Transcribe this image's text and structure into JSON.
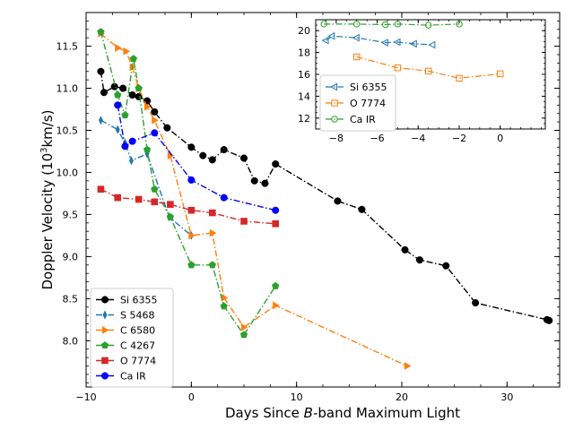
{
  "chart_data": [
    {
      "type": "line",
      "xlabel_parts": [
        "Days Since ",
        "B",
        "-band Maximum Light"
      ],
      "ylabel_parts": [
        "Doppler Velocity (10",
        "3",
        "km/s)"
      ],
      "xlim": [
        -10,
        35
      ],
      "ylim": [
        7.45,
        11.9
      ],
      "xticks": [
        -10,
        0,
        10,
        20,
        30
      ],
      "xtick_labels": [
        "−10",
        "0",
        "10",
        "20",
        "30"
      ],
      "yticks": [
        8.0,
        8.5,
        9.0,
        9.5,
        10.0,
        10.5,
        11.0,
        11.5
      ],
      "ytick_labels": [
        "8.0",
        "8.5",
        "9.0",
        "9.5",
        "10.0",
        "10.5",
        "11.0",
        "11.5"
      ],
      "legend_position": "lower-left",
      "series": [
        {
          "name": "Si 6355",
          "color": "#000000",
          "marker": "circle",
          "x": [
            -8.6,
            -8.3,
            -7.3,
            -6.5,
            -5.6,
            -5.0,
            -4.2,
            -3.5,
            -2.3,
            0.0,
            1.1,
            2.0,
            3.1,
            5.0,
            6.0,
            7.0,
            8.0,
            13.9,
            16.2,
            20.3,
            21.7,
            24.2,
            27.0,
            33.8,
            34.0
          ],
          "y": [
            11.2,
            10.95,
            11.02,
            11.0,
            10.92,
            10.9,
            10.85,
            10.72,
            10.53,
            10.3,
            10.2,
            10.15,
            10.27,
            10.17,
            9.9,
            9.87,
            10.1,
            9.66,
            9.56,
            9.08,
            8.96,
            8.89,
            8.45,
            8.25,
            8.24
          ]
        },
        {
          "name": "S 5468",
          "color": "#1f77b4",
          "marker": "thin_diamond",
          "x": [
            -8.6,
            -7.0,
            -6.3,
            -5.7,
            -4.2,
            -2.1,
            0.0
          ],
          "y": [
            10.62,
            10.51,
            10.35,
            10.14,
            10.22,
            9.47,
            9.25
          ]
        },
        {
          "name": "C 6580",
          "color": "#ff7f0e",
          "marker": "triangle_right",
          "x": [
            -8.6,
            -7.0,
            -6.2,
            -5.6,
            -5.0,
            -4.2,
            -3.5,
            -2.0,
            0.0,
            2.0,
            3.1,
            5.0,
            8.0,
            20.5
          ],
          "y": [
            11.65,
            11.48,
            11.44,
            11.25,
            11.0,
            10.78,
            10.62,
            10.2,
            9.25,
            9.28,
            8.51,
            8.16,
            8.42,
            7.7
          ]
        },
        {
          "name": "C 4267",
          "color": "#2ca02c",
          "marker": "pentagon",
          "x": [
            -8.6,
            -7.0,
            -6.3,
            -5.5,
            -5.0,
            -4.2,
            -3.5,
            -2.0,
            0.0,
            2.0,
            3.1,
            5.0,
            8.0
          ],
          "y": [
            11.67,
            10.92,
            10.68,
            11.35,
            11.0,
            10.27,
            9.8,
            9.47,
            8.9,
            8.9,
            8.41,
            8.07,
            8.65
          ]
        },
        {
          "name": "O 7774",
          "color": "#d62728",
          "marker": "square",
          "x": [
            -8.6,
            -7.0,
            -5.0,
            -3.5,
            -2.0,
            0.0,
            2.0,
            5.0,
            8.0
          ],
          "y": [
            9.8,
            9.7,
            9.68,
            9.65,
            9.62,
            9.55,
            9.52,
            9.42,
            9.39
          ]
        },
        {
          "name": "Ca IR",
          "color": "#0000ff",
          "marker": "circle",
          "x": [
            -7.0,
            -6.3,
            -5.6,
            -3.5,
            0.0,
            3.1,
            8.0
          ],
          "y": [
            10.8,
            10.31,
            10.37,
            10.47,
            9.91,
            9.7,
            9.55
          ]
        }
      ]
    },
    {
      "type": "line",
      "xlim": [
        -9,
        2.2
      ],
      "ylim": [
        11,
        21
      ],
      "xticks": [
        -8,
        -6,
        -4,
        -2,
        0
      ],
      "xtick_labels": [
        "−8",
        "−6",
        "−4",
        "−2",
        "0"
      ],
      "yticks": [
        12,
        14,
        16,
        18,
        20
      ],
      "ytick_labels": [
        "12",
        "14",
        "16",
        "18",
        "20"
      ],
      "legend_position": "center-left",
      "series": [
        {
          "name": "Si 6355",
          "color": "#1f77b4",
          "marker": "triangle_left_open",
          "x": [
            -8.5,
            -8.2,
            -7.0,
            -5.6,
            -5.0,
            -4.2,
            -3.3
          ],
          "y": [
            19.1,
            19.5,
            19.35,
            18.9,
            18.95,
            18.8,
            18.7
          ]
        },
        {
          "name": "O 7774",
          "color": "#ff7f0e",
          "marker": "square_open",
          "x": [
            -7.0,
            -5.0,
            -3.5,
            -2.0,
            0.0
          ],
          "y": [
            17.6,
            16.6,
            16.3,
            15.65,
            16.05
          ]
        },
        {
          "name": "Ca IR",
          "color": "#2ca02c",
          "marker": "circle_open",
          "x": [
            -8.6,
            -7.0,
            -5.6,
            -5.0,
            -3.5,
            -2.0
          ],
          "y": [
            20.6,
            20.6,
            20.55,
            20.6,
            20.5,
            20.6
          ]
        }
      ]
    }
  ]
}
